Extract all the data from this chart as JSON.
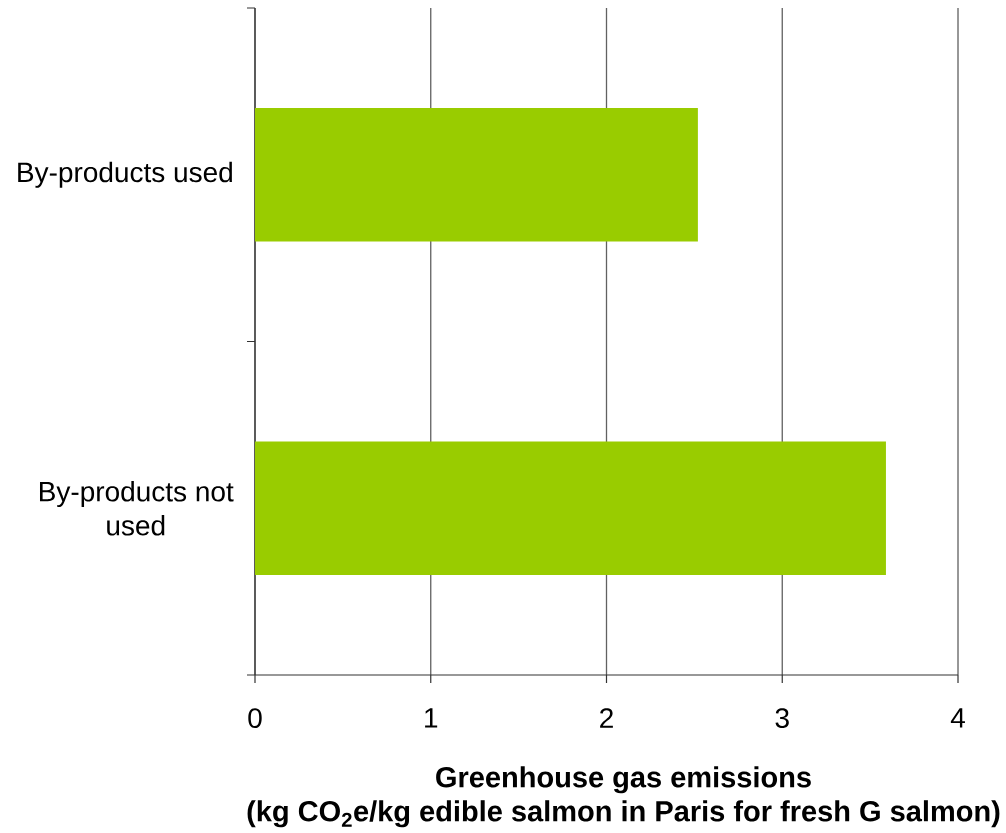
{
  "chart_data": {
    "type": "bar",
    "orientation": "horizontal",
    "categories": [
      "By-products used",
      "By-products not used"
    ],
    "values": [
      2.52,
      3.59
    ],
    "color": "#99cc00",
    "xlabel": "Greenhouse gas emissions (kg CO$_{2}$e/kg edible salmon in Paris for fresh G salmon)",
    "xlim": [
      0,
      4
    ],
    "xticks": [
      0,
      1,
      2,
      3,
      4
    ],
    "grid": "x"
  }
}
